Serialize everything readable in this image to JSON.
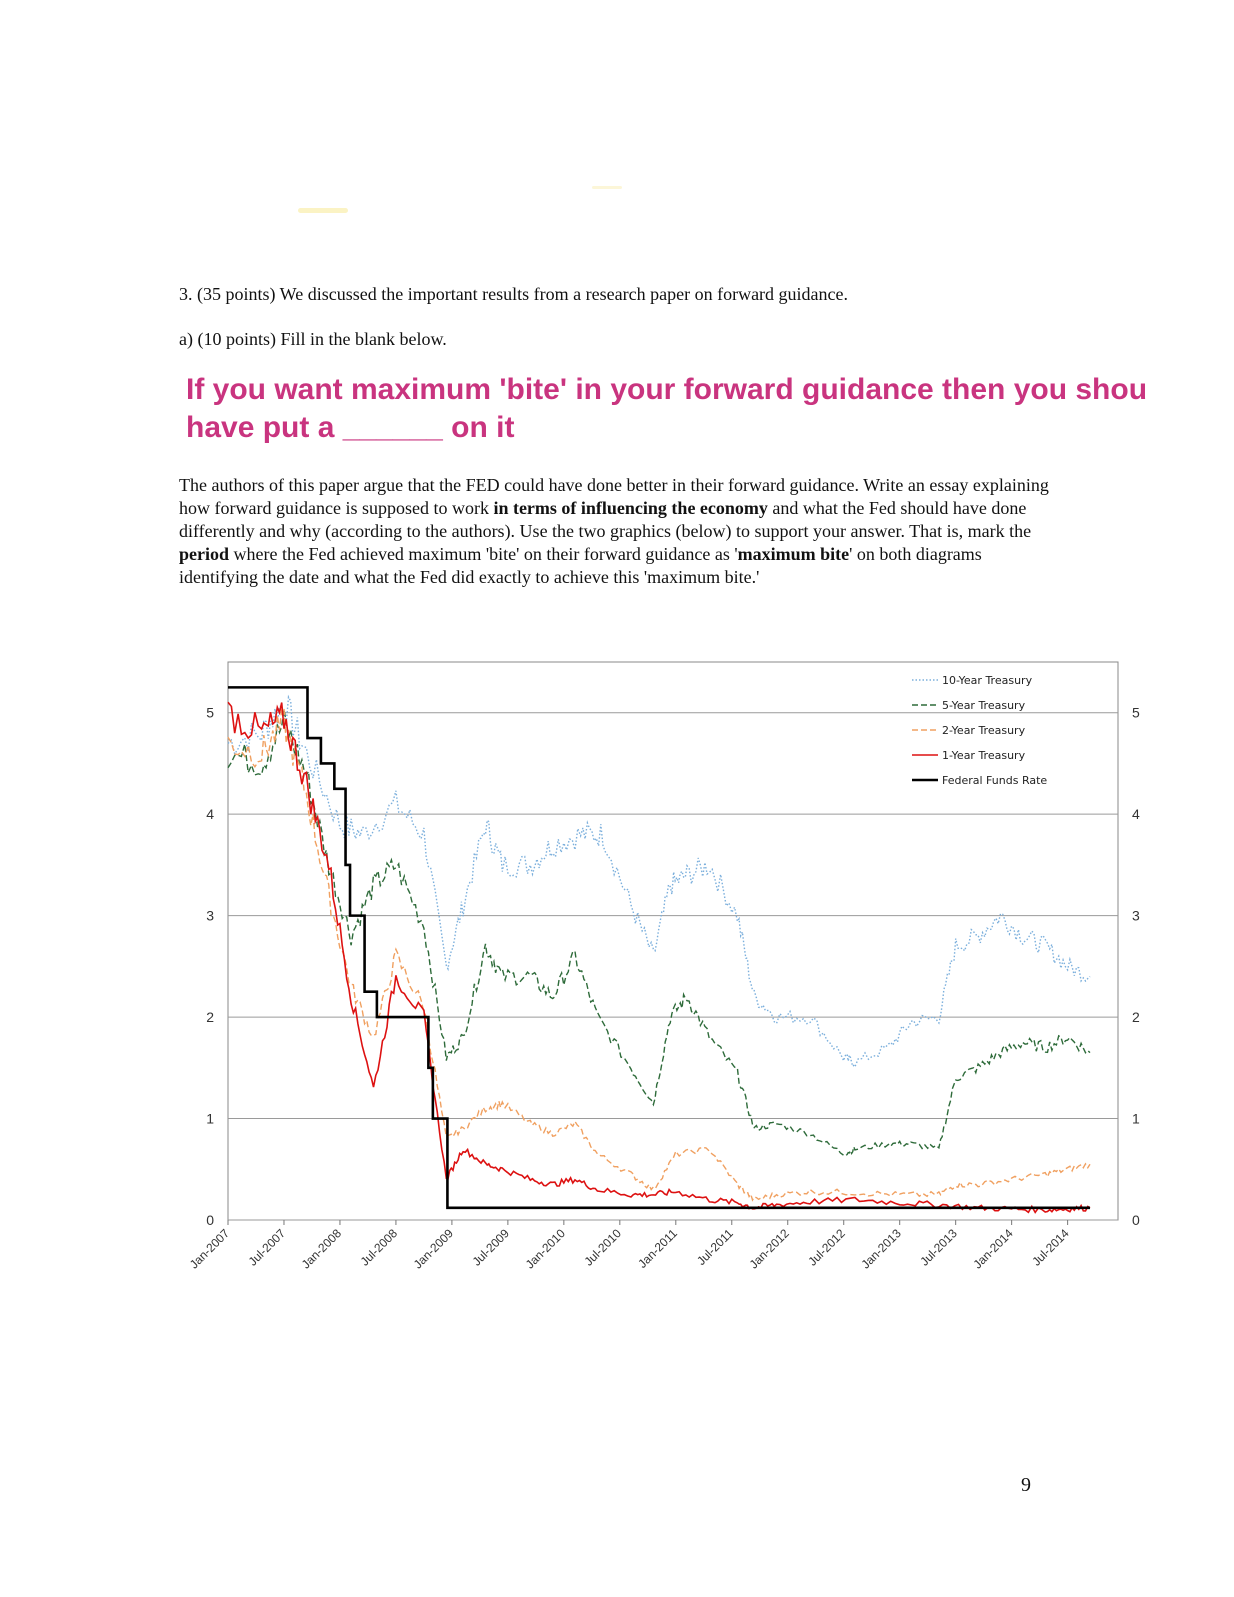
{
  "question": {
    "header": "3. (35 points) We discussed the important results from a research paper on forward guidance.",
    "part_a": "a) (10 points) Fill in the blank below.",
    "slide_line1": "If you want maximum 'bite' in your forward guidance then you shou",
    "slide_line2": "have put a ______ on it"
  },
  "essay": {
    "s1": "The authors of this paper argue that the FED could have done better in their forward guidance. Write an essay explaining how forward guidance is supposed to work ",
    "b1": "in terms of influencing the economy",
    "s2": " and what the Fed should have done differently and why (according to the authors).  Use the two graphics (below) to support your answer.  That is, mark the ",
    "b2": "period",
    "s3": " where the Fed achieved maximum 'bite' on their forward guidance as '",
    "b3": "maximum bite",
    "s4": "' on both diagrams identifying the date and what the Fed did exactly to achieve this 'maximum bite.'"
  },
  "page_number": "9",
  "colors": {
    "slide_text": "#c9347f",
    "ten_year": "#7bafdc",
    "five_year": "#2e6b3a",
    "two_year": "#f0a060",
    "one_year": "#dd1111",
    "fed_funds": "#000000"
  },
  "chart_data": {
    "type": "line",
    "x_ticks": [
      "Jan-2007",
      "Jul-2007",
      "Jan-2008",
      "Jul-2008",
      "Jan-2009",
      "Jul-2009",
      "Jan-2010",
      "Jul-2010",
      "Jan-2011",
      "Jul-2011",
      "Jan-2012",
      "Jul-2012",
      "Jan-2013",
      "Jul-2013",
      "Jan-2014",
      "Jul-2014"
    ],
    "x_range": [
      "Jan-2007",
      "Dec-2014"
    ],
    "ylim": [
      0,
      5.5
    ],
    "y_ticks": [
      0,
      1,
      2,
      3,
      4,
      5
    ],
    "grid": "horizontal",
    "legend_position": "top-right",
    "series": [
      {
        "name": "10-Year Treasury",
        "style": "dotted",
        "color": "#7bafdc",
        "x": [
          2007.0,
          2007.3,
          2007.5,
          2007.7,
          2008.0,
          2008.2,
          2008.5,
          2008.75,
          2008.95,
          2009.1,
          2009.3,
          2009.45,
          2009.7,
          2009.9,
          2010.15,
          2010.35,
          2010.6,
          2010.8,
          2010.95,
          2011.1,
          2011.3,
          2011.55,
          2011.7,
          2011.9,
          2012.2,
          2012.5,
          2012.6,
          2012.9,
          2013.1,
          2013.35,
          2013.5,
          2013.7,
          2013.9,
          2014.1,
          2014.3,
          2014.5,
          2014.7
        ],
        "y": [
          4.7,
          4.8,
          5.1,
          4.6,
          3.9,
          3.8,
          4.1,
          3.8,
          2.5,
          3.1,
          3.9,
          3.5,
          3.5,
          3.7,
          3.8,
          3.8,
          3.1,
          2.6,
          3.3,
          3.4,
          3.5,
          3.0,
          2.2,
          2.0,
          2.0,
          1.6,
          1.55,
          1.7,
          1.95,
          2.0,
          2.7,
          2.8,
          3.0,
          2.8,
          2.7,
          2.5,
          2.4
        ]
      },
      {
        "name": "5-Year Treasury",
        "style": "dashed",
        "color": "#2e6b3a",
        "x": [
          2007.0,
          2007.3,
          2007.5,
          2007.7,
          2007.9,
          2008.1,
          2008.3,
          2008.5,
          2008.75,
          2008.95,
          2009.1,
          2009.3,
          2009.45,
          2009.7,
          2009.9,
          2010.1,
          2010.3,
          2010.6,
          2010.8,
          2010.95,
          2011.1,
          2011.3,
          2011.55,
          2011.7,
          2011.9,
          2012.2,
          2012.5,
          2012.6,
          2012.9,
          2013.1,
          2013.35,
          2013.5,
          2013.7,
          2013.9,
          2014.1,
          2014.3,
          2014.5,
          2014.7
        ],
        "y": [
          4.6,
          4.5,
          4.9,
          4.4,
          3.5,
          2.8,
          3.3,
          3.5,
          2.9,
          1.6,
          1.8,
          2.7,
          2.4,
          2.4,
          2.2,
          2.6,
          2.0,
          1.5,
          1.15,
          2.0,
          2.2,
          1.8,
          1.45,
          0.9,
          0.95,
          0.85,
          0.65,
          0.7,
          0.75,
          0.75,
          0.7,
          1.4,
          1.5,
          1.65,
          1.75,
          1.7,
          1.8,
          1.65
        ]
      },
      {
        "name": "2-Year Treasury",
        "style": "dashed",
        "color": "#f0a060",
        "x": [
          2007.0,
          2007.3,
          2007.5,
          2007.7,
          2007.9,
          2008.1,
          2008.3,
          2008.5,
          2008.75,
          2008.95,
          2009.1,
          2009.3,
          2009.45,
          2009.7,
          2009.9,
          2010.1,
          2010.3,
          2010.6,
          2010.8,
          2011.0,
          2011.3,
          2011.55,
          2011.7,
          2011.9,
          2012.2,
          2012.6,
          2013.0,
          2013.35,
          2013.5,
          2013.7,
          2014.0,
          2014.3,
          2014.5,
          2014.7
        ],
        "y": [
          4.7,
          4.6,
          4.9,
          4.2,
          3.2,
          2.3,
          1.8,
          2.6,
          2.1,
          0.8,
          0.9,
          1.1,
          1.15,
          0.95,
          0.85,
          0.95,
          0.65,
          0.45,
          0.3,
          0.65,
          0.7,
          0.35,
          0.2,
          0.25,
          0.28,
          0.27,
          0.25,
          0.25,
          0.35,
          0.35,
          0.4,
          0.45,
          0.5,
          0.55
        ]
      },
      {
        "name": "1-Year Treasury",
        "style": "solid",
        "color": "#dd1111",
        "x": [
          2007.0,
          2007.3,
          2007.5,
          2007.7,
          2007.9,
          2008.1,
          2008.3,
          2008.5,
          2008.75,
          2008.95,
          2009.1,
          2009.3,
          2009.45,
          2009.7,
          2009.9,
          2010.1,
          2010.3,
          2010.6,
          2010.8,
          2011.0,
          2011.3,
          2011.55,
          2011.7,
          2011.9,
          2012.2,
          2012.6,
          2013.0,
          2013.35,
          2013.7,
          2014.0,
          2014.3,
          2014.5,
          2014.7
        ],
        "y": [
          5.0,
          4.8,
          4.95,
          4.3,
          3.5,
          2.2,
          1.3,
          2.4,
          2.0,
          0.4,
          0.7,
          0.55,
          0.5,
          0.4,
          0.35,
          0.4,
          0.3,
          0.25,
          0.25,
          0.28,
          0.2,
          0.17,
          0.12,
          0.15,
          0.18,
          0.2,
          0.17,
          0.15,
          0.12,
          0.11,
          0.1,
          0.11,
          0.12
        ]
      },
      {
        "name": "Federal Funds Rate",
        "style": "step",
        "color": "#000000",
        "x": [
          2007.0,
          2007.71,
          2007.83,
          2007.95,
          2008.05,
          2008.09,
          2008.22,
          2008.33,
          2008.5,
          2008.79,
          2008.83,
          2008.89,
          2008.96,
          2014.7
        ],
        "y": [
          5.25,
          4.75,
          4.5,
          4.25,
          3.5,
          3.0,
          2.25,
          2.0,
          2.0,
          1.5,
          1.0,
          1.0,
          0.12,
          0.12
        ]
      }
    ]
  }
}
